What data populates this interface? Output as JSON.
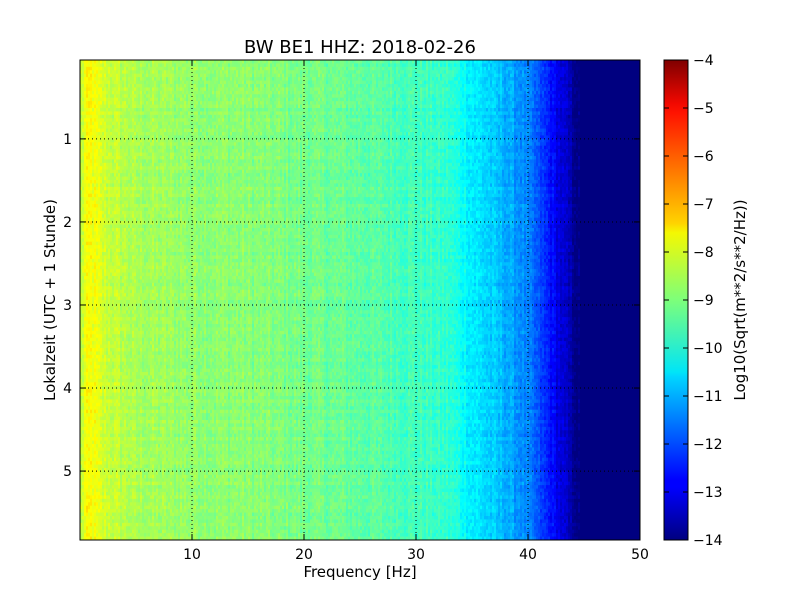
{
  "chart_data": {
    "type": "heatmap",
    "title": "BW BE1 HHZ: 2018-02-26",
    "xlabel": "Frequency [Hz]",
    "ylabel": "Lokalzeit (UTC + 1 Stunde)",
    "xlim": [
      0,
      50
    ],
    "ylim": [
      5.83,
      0.05
    ],
    "x_ticks": [
      10,
      20,
      30,
      40,
      50
    ],
    "x_tick_labels": [
      "10",
      "20",
      "30",
      "40",
      "50"
    ],
    "y_ticks": [
      1,
      2,
      3,
      4,
      5
    ],
    "y_tick_labels": [
      "1",
      "2",
      "3",
      "4",
      "5"
    ],
    "grid": true,
    "colormap": "jet",
    "colorbar": {
      "label": "Log10(Sqrt(m**2/s**2/Hz))",
      "range": [
        -14,
        -4
      ],
      "ticks": [
        -4,
        -5,
        -6,
        -7,
        -8,
        -9,
        -10,
        -11,
        -12,
        -13,
        -14
      ],
      "tick_labels": [
        "−4",
        "−5",
        "−6",
        "−7",
        "−8",
        "−9",
        "−10",
        "−11",
        "−12",
        "−13",
        "−14"
      ]
    },
    "spectrum_profile": {
      "frequency_hz": [
        0,
        0.5,
        1,
        2,
        5,
        10,
        15,
        20,
        25,
        30,
        33,
        35,
        38,
        40,
        42,
        43.5,
        44.5,
        50
      ],
      "log10_amplitude": [
        -8.5,
        -7.9,
        -7.8,
        -8.2,
        -8.6,
        -8.8,
        -8.9,
        -9.1,
        -9.3,
        -9.6,
        -9.8,
        -10.4,
        -11.0,
        -11.5,
        -12.6,
        -13.4,
        -14,
        -14
      ]
    }
  }
}
